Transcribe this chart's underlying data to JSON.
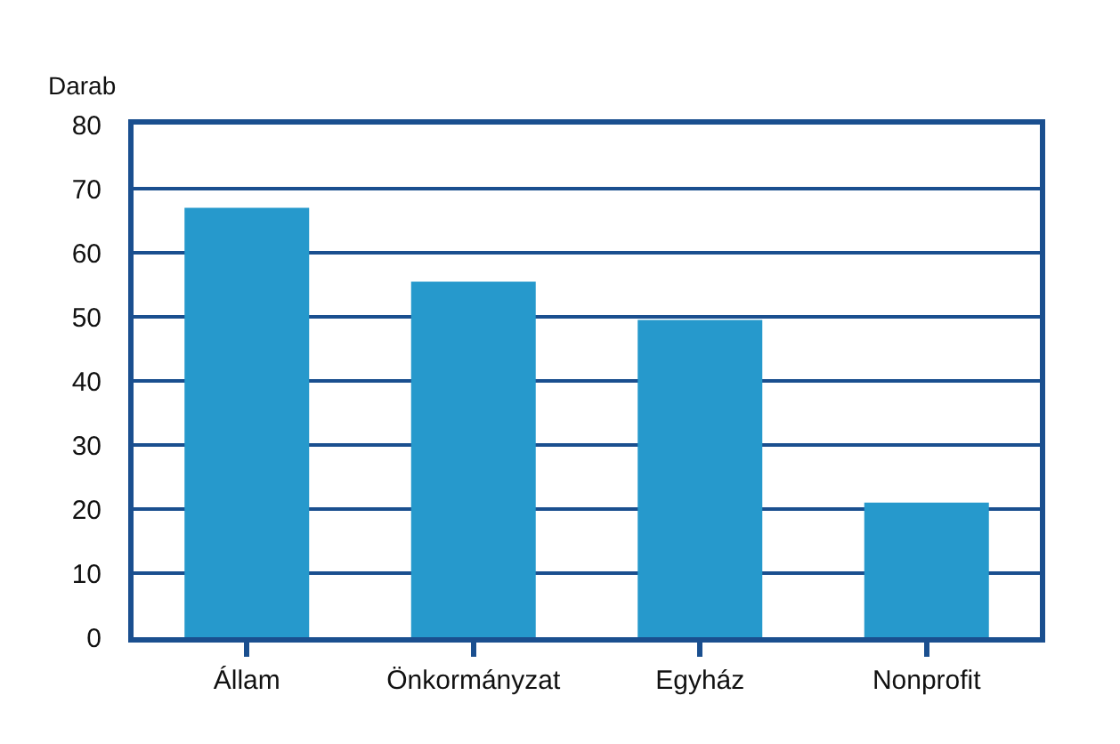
{
  "chart_data": {
    "type": "bar",
    "ylabel": "Darab",
    "categories": [
      "Állam",
      "Önkormányzat",
      "Egyház",
      "Nonprofit"
    ],
    "values": [
      67,
      55.5,
      49.5,
      21
    ],
    "color": "#2699cc",
    "ylim": [
      0,
      80
    ],
    "yticks": [
      0,
      10,
      20,
      30,
      40,
      50,
      60,
      70,
      80
    ],
    "grid": "y"
  }
}
